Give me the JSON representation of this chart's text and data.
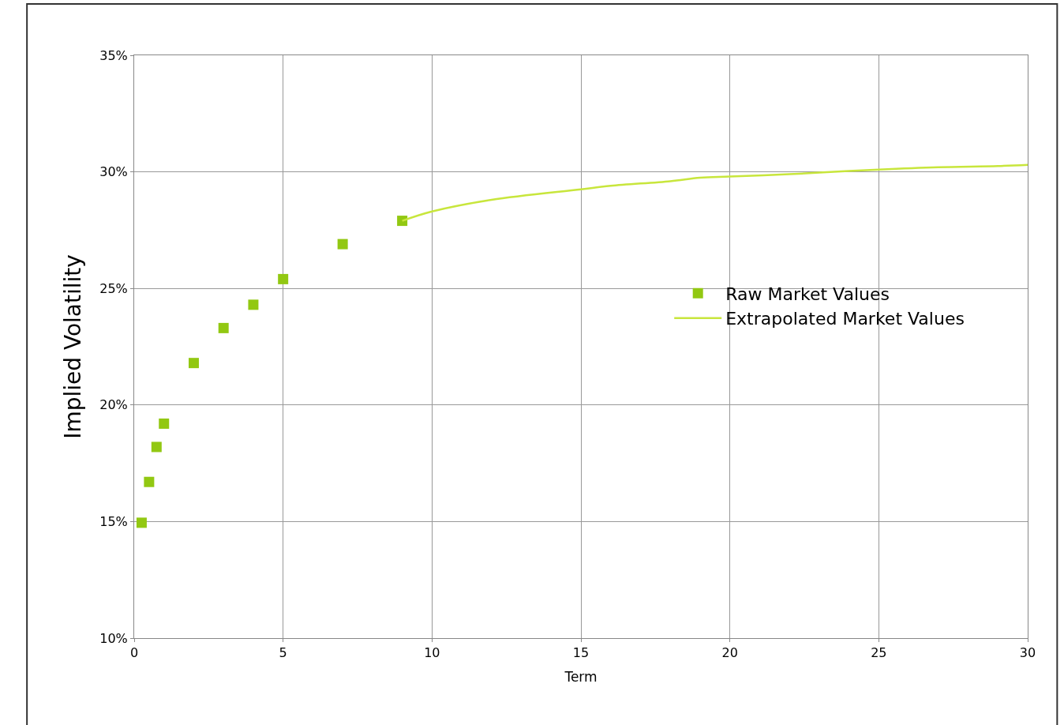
{
  "chart_data": {
    "type": "scatter",
    "xlabel": "Term",
    "ylabel": "Implied Volatility",
    "xlim": [
      0,
      30
    ],
    "xticks": [
      0,
      5,
      10,
      15,
      20,
      25,
      30
    ],
    "ylim": [
      10,
      35
    ],
    "yticks": [
      {
        "value": 10,
        "label": "10%"
      },
      {
        "value": 15,
        "label": "15%"
      },
      {
        "value": 20,
        "label": "20%"
      },
      {
        "value": 25,
        "label": "25%"
      },
      {
        "value": 30,
        "label": "30%"
      },
      {
        "value": 35,
        "label": "35%"
      }
    ],
    "grid": true,
    "legend": "right",
    "series": [
      {
        "name": "Raw Market Values",
        "marker": "square",
        "color": "#92c812",
        "x": [
          0.25,
          0.5,
          0.75,
          1,
          2,
          3,
          4,
          5,
          7,
          9
        ],
        "values": [
          14.95,
          16.7,
          18.2,
          19.2,
          21.8,
          23.3,
          24.3,
          25.4,
          26.9,
          27.9
        ]
      },
      {
        "name": "Extrapolated Market Values",
        "type": "line",
        "marker": "none",
        "color": "#c8e63c",
        "x": [
          9,
          10,
          12,
          15,
          16,
          18,
          19,
          20,
          22,
          23.5,
          25,
          27,
          29,
          30
        ],
        "values": [
          27.9,
          28.3,
          28.8,
          29.25,
          29.4,
          29.6,
          29.75,
          29.8,
          29.9,
          30.0,
          30.1,
          30.2,
          30.25,
          30.3
        ]
      }
    ]
  }
}
